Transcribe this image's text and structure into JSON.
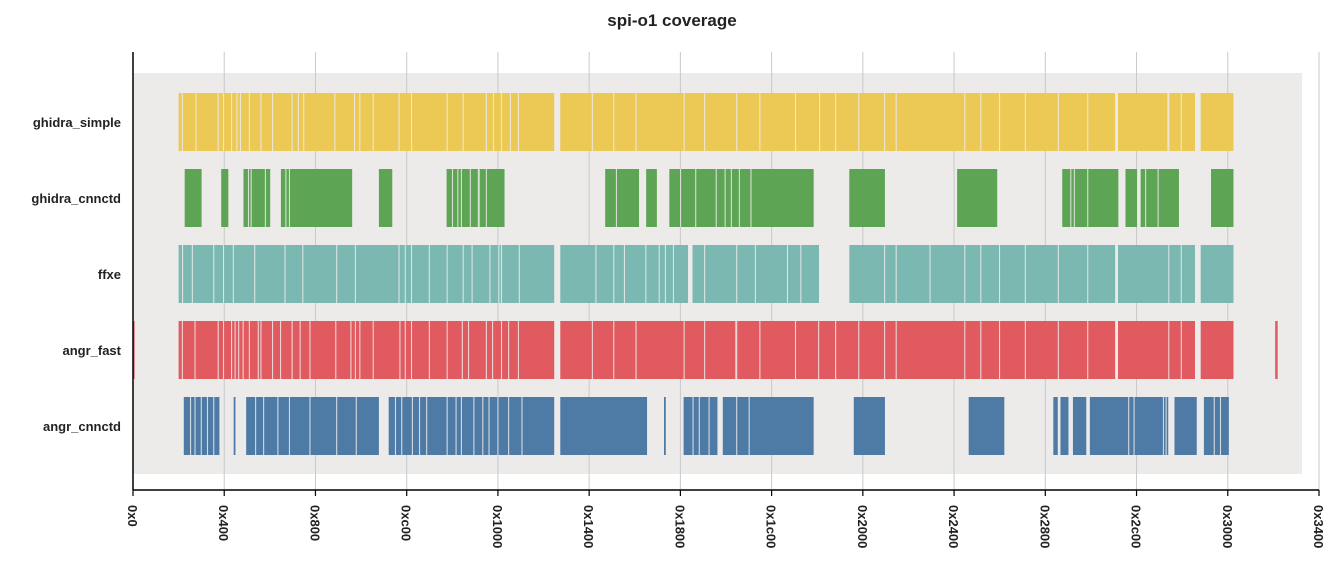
{
  "chart_data": {
    "type": "bar",
    "title": "spi-o1 coverage",
    "xlim": [
      0,
      13312
    ],
    "x_ticks": [
      0,
      1024,
      2048,
      3072,
      4096,
      5120,
      6144,
      7168,
      8192,
      9216,
      10240,
      11264,
      12288,
      13312
    ],
    "x_tick_labels": [
      "0x0",
      "0x400",
      "0x800",
      "0xc00",
      "0x1000",
      "0x1400",
      "0x1800",
      "0x1c00",
      "0x2000",
      "0x2400",
      "0x2800",
      "0x2c00",
      "0x3000",
      "0x3400"
    ],
    "grid": "vertical",
    "background": "#ECEBEA",
    "series": [
      {
        "name": "ghidra_simple",
        "color": "#ECC955",
        "ranges": [
          [
            512,
            4728
          ],
          [
            4796,
            11024
          ],
          [
            11056,
            11920
          ],
          [
            11984,
            12352
          ]
        ],
        "gaps": [
          548,
          700,
          950,
          1010,
          1100,
          1160,
          1200,
          1300,
          1430,
          1560,
          1780,
          1850,
          1910,
          2260,
          2480,
          2540,
          2690,
          2980,
          3120,
          3520,
          3700,
          3960,
          4040,
          4130,
          4230,
          4320,
          5150,
          5390,
          5640,
          6180,
          6410,
          6770,
          7030,
          7430,
          7700,
          7880,
          8140,
          8430,
          8560,
          9330,
          9510,
          9720,
          10010,
          10380,
          10710,
          11620,
          11610,
          11760
        ]
      },
      {
        "name": "ghidra_cnnctd",
        "color": "#5DA454",
        "ranges": [
          [
            580,
            770
          ],
          [
            990,
            1070
          ],
          [
            1240,
            1540
          ],
          [
            1660,
            2460
          ],
          [
            2760,
            2910
          ],
          [
            3520,
            4170
          ],
          [
            5300,
            5680
          ],
          [
            5760,
            5880
          ],
          [
            6020,
            7640
          ],
          [
            8040,
            8440
          ],
          [
            9250,
            9700
          ],
          [
            10430,
            11060
          ],
          [
            11140,
            11270
          ],
          [
            11310,
            11740
          ],
          [
            12100,
            12352
          ]
        ],
        "gaps": [
          1290,
          1320,
          1480,
          1710,
          1750,
          3580,
          3640,
          3680,
          3780,
          3870,
          3880,
          3960,
          5420,
          6140,
          6310,
          6540,
          6640,
          6710,
          6800,
          6930,
          10520,
          10560,
          10710,
          11360,
          11500
        ]
      },
      {
        "name": "ffxe",
        "color": "#7BB8B2",
        "ranges": [
          [
            512,
            4728
          ],
          [
            4796,
            6230
          ],
          [
            6280,
            7700
          ],
          [
            8040,
            11024
          ],
          [
            11056,
            11920
          ],
          [
            11984,
            12352
          ]
        ],
        "gaps": [
          550,
          660,
          900,
          1010,
          1120,
          1360,
          1700,
          1900,
          2280,
          2490,
          2980,
          3050,
          3120,
          3320,
          3520,
          3700,
          3800,
          4000,
          4100,
          4130,
          4330,
          5190,
          5390,
          5510,
          5750,
          5900,
          5970,
          6060,
          6410,
          6770,
          6980,
          7340,
          7490,
          8430,
          8560,
          8940,
          9330,
          9510,
          9720,
          10010,
          10380,
          10710,
          11620,
          11760
        ]
      },
      {
        "name": "angr_fast",
        "color": "#E05A5F",
        "ranges": [
          [
            0,
            18
          ],
          [
            512,
            4728
          ],
          [
            4796,
            11024
          ],
          [
            11056,
            11920
          ],
          [
            11984,
            12352
          ],
          [
            12820,
            12848
          ]
        ],
        "gaps": [
          548,
          690,
          950,
          1010,
          1100,
          1140,
          1180,
          1230,
          1300,
          1400,
          1430,
          1560,
          1650,
          1780,
          1870,
          1980,
          2270,
          2440,
          2490,
          2540,
          2690,
          2990,
          3050,
          3120,
          3320,
          3520,
          3690,
          3760,
          3960,
          4030,
          4130,
          4210,
          4320,
          5150,
          5390,
          5640,
          6180,
          6410,
          6760,
          6770,
          7030,
          7430,
          7690,
          7880,
          8140,
          8430,
          8560,
          9330,
          9510,
          9720,
          10010,
          10380,
          10710,
          11620,
          11760
        ]
      },
      {
        "name": "angr_cnnctd",
        "color": "#4E7AA6",
        "ranges": [
          [
            570,
            970
          ],
          [
            1130,
            1150
          ],
          [
            1270,
            2760
          ],
          [
            2870,
            4728
          ],
          [
            4796,
            5770
          ],
          [
            5960,
            5980
          ],
          [
            6180,
            6560
          ],
          [
            6620,
            7640
          ],
          [
            8090,
            8440
          ],
          [
            9380,
            9780
          ],
          [
            10330,
            10380
          ],
          [
            10410,
            10500
          ],
          [
            10550,
            10700
          ],
          [
            10740,
            11560
          ],
          [
            11570,
            11620
          ],
          [
            11690,
            11940
          ],
          [
            12020,
            12300
          ]
        ],
        "gaps": [
          640,
          690,
          760,
          830,
          900,
          1370,
          1460,
          1620,
          1750,
          1980,
          2280,
          2500,
          2940,
          3010,
          3130,
          3210,
          3290,
          3520,
          3620,
          3680,
          3820,
          3920,
          3990,
          4090,
          4210,
          4360,
          6280,
          6350,
          6460,
          6770,
          6910,
          11170,
          11230,
          11590,
          11970,
          12130,
          12200
        ]
      }
    ]
  }
}
